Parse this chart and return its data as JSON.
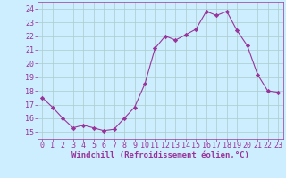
{
  "x": [
    0,
    1,
    2,
    3,
    4,
    5,
    6,
    7,
    8,
    9,
    10,
    11,
    12,
    13,
    14,
    15,
    16,
    17,
    18,
    19,
    20,
    21,
    22,
    23
  ],
  "y": [
    17.5,
    16.8,
    16.0,
    15.3,
    15.5,
    15.3,
    15.1,
    15.2,
    16.0,
    16.8,
    18.5,
    21.1,
    22.0,
    21.7,
    22.1,
    22.5,
    23.8,
    23.5,
    23.8,
    22.4,
    21.3,
    19.2,
    18.0,
    17.9
  ],
  "line_color": "#993399",
  "marker": "D",
  "marker_size": 2.2,
  "bg_color": "#cceeff",
  "grid_color": "#aacccc",
  "xlabel": "Windchill (Refroidissement éolien,°C)",
  "xlim": [
    -0.5,
    23.5
  ],
  "ylim": [
    14.5,
    24.5
  ],
  "yticks": [
    15,
    16,
    17,
    18,
    19,
    20,
    21,
    22,
    23,
    24
  ],
  "xticks": [
    0,
    1,
    2,
    3,
    4,
    5,
    6,
    7,
    8,
    9,
    10,
    11,
    12,
    13,
    14,
    15,
    16,
    17,
    18,
    19,
    20,
    21,
    22,
    23
  ],
  "tick_color": "#993399",
  "label_color": "#993399",
  "label_fontsize": 6.5,
  "tick_fontsize": 6.0,
  "linewidth": 0.8
}
